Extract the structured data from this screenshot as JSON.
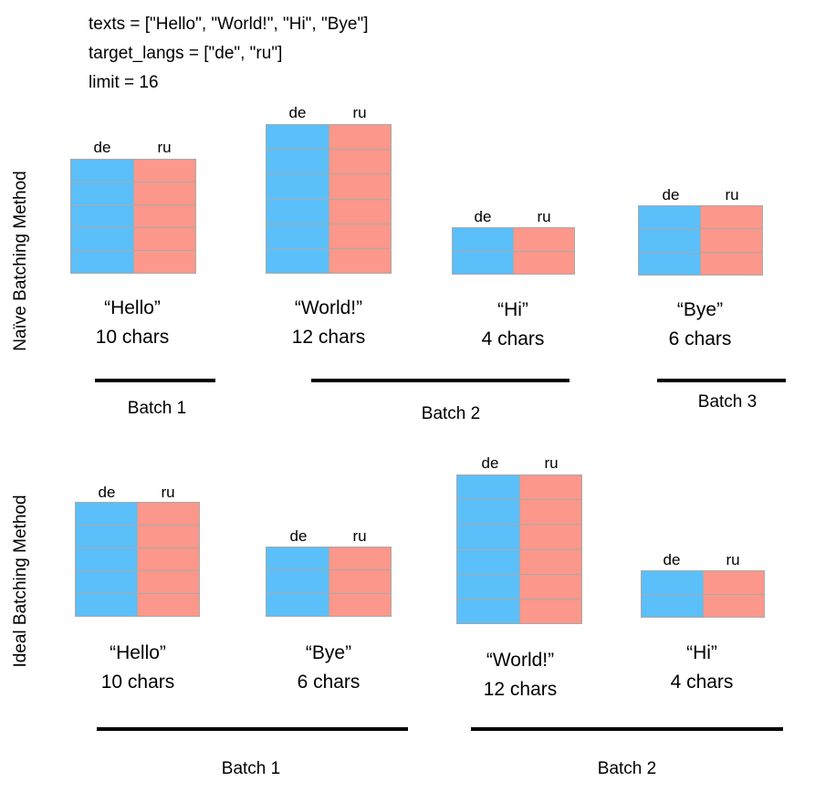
{
  "code_lines": [
    "texts = [\"Hello\", \"World!\", \"Hi\", \"Bye\"]",
    "target_langs = [\"de\", \"ru\"]",
    "limit = 16"
  ],
  "naive": {
    "title": "Naïve Batching Method",
    "items": [
      {
        "de": "de",
        "ru": "ru",
        "rows": 5,
        "word": "“Hello”",
        "chars": "10 chars"
      },
      {
        "de": "de",
        "ru": "ru",
        "rows": 6,
        "word": "“World!”",
        "chars": "12 chars"
      },
      {
        "de": "de",
        "ru": "ru",
        "rows": 2,
        "word": "“Hi”",
        "chars": "4 chars"
      },
      {
        "de": "de",
        "ru": "ru",
        "rows": 3,
        "word": "“Bye”",
        "chars": "6 chars"
      }
    ],
    "batches": [
      "Batch 1",
      "Batch 2",
      "Batch 3"
    ]
  },
  "ideal": {
    "title": "Ideal Batching Method",
    "items": [
      {
        "de": "de",
        "ru": "ru",
        "rows": 5,
        "word": "“Hello”",
        "chars": "10 chars"
      },
      {
        "de": "de",
        "ru": "ru",
        "rows": 3,
        "word": "“Bye”",
        "chars": "6 chars"
      },
      {
        "de": "de",
        "ru": "ru",
        "rows": 6,
        "word": "“World!”",
        "chars": "12 chars"
      },
      {
        "de": "de",
        "ru": "ru",
        "rows": 2,
        "word": "“Hi”",
        "chars": "4 chars"
      }
    ],
    "batches": [
      "Batch 1",
      "Batch 2"
    ]
  },
  "colors": {
    "de": "#5bbff9",
    "ru": "#fc978b",
    "grid": "#aaaaaa"
  }
}
